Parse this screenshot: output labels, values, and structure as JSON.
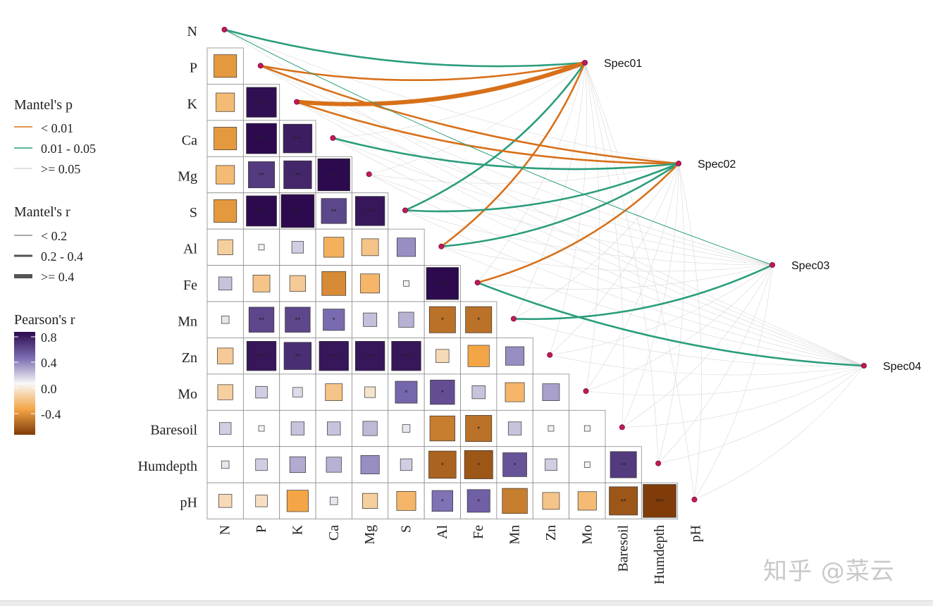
{
  "chart_data": {
    "type": "heatmap",
    "subtype": "mantel-test correlation plot",
    "variables": [
      "N",
      "P",
      "K",
      "Ca",
      "Mg",
      "S",
      "Al",
      "Fe",
      "Mn",
      "Zn",
      "Mo",
      "Baresoil",
      "Humdepth",
      "pH"
    ],
    "species": [
      "Spec01",
      "Spec02",
      "Spec03",
      "Spec04"
    ],
    "pearson_r": [
      {
        "row": "P",
        "col": "N",
        "r": -0.45,
        "sig": ""
      },
      {
        "row": "K",
        "col": "N",
        "r": -0.3,
        "sig": ""
      },
      {
        "row": "K",
        "col": "P",
        "r": 0.78,
        "sig": "***"
      },
      {
        "row": "Ca",
        "col": "N",
        "r": -0.45,
        "sig": ""
      },
      {
        "row": "Ca",
        "col": "P",
        "r": 0.8,
        "sig": "***"
      },
      {
        "row": "Ca",
        "col": "K",
        "r": 0.72,
        "sig": "***"
      },
      {
        "row": "Mg",
        "col": "N",
        "r": -0.3,
        "sig": ""
      },
      {
        "row": "Mg",
        "col": "P",
        "r": 0.6,
        "sig": "**"
      },
      {
        "row": "Mg",
        "col": "K",
        "r": 0.68,
        "sig": "**"
      },
      {
        "row": "Mg",
        "col": "Ca",
        "r": 0.9,
        "sig": "***"
      },
      {
        "row": "S",
        "col": "N",
        "r": -0.45,
        "sig": ""
      },
      {
        "row": "S",
        "col": "P",
        "r": 0.8,
        "sig": "***"
      },
      {
        "row": "S",
        "col": "K",
        "r": 0.95,
        "sig": "***"
      },
      {
        "row": "S",
        "col": "Ca",
        "r": 0.55,
        "sig": "**"
      },
      {
        "row": "S",
        "col": "Mg",
        "r": 0.75,
        "sig": "***"
      },
      {
        "row": "Al",
        "col": "N",
        "r": -0.2,
        "sig": ""
      },
      {
        "row": "Al",
        "col": "P",
        "r": 0.02,
        "sig": ""
      },
      {
        "row": "Al",
        "col": "K",
        "r": 0.12,
        "sig": ""
      },
      {
        "row": "Al",
        "col": "Ca",
        "r": -0.35,
        "sig": ""
      },
      {
        "row": "Al",
        "col": "Mg",
        "r": -0.25,
        "sig": ""
      },
      {
        "row": "Al",
        "col": "S",
        "r": 0.3,
        "sig": ""
      },
      {
        "row": "Fe",
        "col": "N",
        "r": 0.15,
        "sig": ""
      },
      {
        "row": "Fe",
        "col": "P",
        "r": -0.25,
        "sig": ""
      },
      {
        "row": "Fe",
        "col": "K",
        "r": -0.22,
        "sig": ""
      },
      {
        "row": "Fe",
        "col": "Ca",
        "r": -0.5,
        "sig": ""
      },
      {
        "row": "Fe",
        "col": "Mg",
        "r": -0.32,
        "sig": ""
      },
      {
        "row": "Fe",
        "col": "S",
        "r": 0.02,
        "sig": ""
      },
      {
        "row": "Fe",
        "col": "Al",
        "r": 0.9,
        "sig": "***"
      },
      {
        "row": "Mn",
        "col": "N",
        "r": 0.05,
        "sig": ""
      },
      {
        "row": "Mn",
        "col": "P",
        "r": 0.55,
        "sig": "**"
      },
      {
        "row": "Mn",
        "col": "K",
        "r": 0.55,
        "sig": "**"
      },
      {
        "row": "Mn",
        "col": "Ca",
        "r": 0.4,
        "sig": "*"
      },
      {
        "row": "Mn",
        "col": "Mg",
        "r": 0.16,
        "sig": ""
      },
      {
        "row": "Mn",
        "col": "S",
        "r": 0.2,
        "sig": ""
      },
      {
        "row": "Mn",
        "col": "Al",
        "r": -0.6,
        "sig": "*"
      },
      {
        "row": "Mn",
        "col": "Fe",
        "r": -0.6,
        "sig": "*"
      },
      {
        "row": "Zn",
        "col": "N",
        "r": -0.22,
        "sig": ""
      },
      {
        "row": "Zn",
        "col": "P",
        "r": 0.75,
        "sig": "***"
      },
      {
        "row": "Zn",
        "col": "K",
        "r": 0.65,
        "sig": "**"
      },
      {
        "row": "Zn",
        "col": "Ca",
        "r": 0.75,
        "sig": "***"
      },
      {
        "row": "Zn",
        "col": "Mg",
        "r": 0.75,
        "sig": "***"
      },
      {
        "row": "Zn",
        "col": "S",
        "r": 0.75,
        "sig": "***"
      },
      {
        "row": "Zn",
        "col": "Al",
        "r": -0.15,
        "sig": ""
      },
      {
        "row": "Zn",
        "col": "Fe",
        "r": -0.4,
        "sig": ""
      },
      {
        "row": "Zn",
        "col": "Mn",
        "r": 0.3,
        "sig": ""
      },
      {
        "row": "Mo",
        "col": "N",
        "r": -0.2,
        "sig": ""
      },
      {
        "row": "Mo",
        "col": "P",
        "r": 0.12,
        "sig": ""
      },
      {
        "row": "Mo",
        "col": "K",
        "r": 0.08,
        "sig": ""
      },
      {
        "row": "Mo",
        "col": "Ca",
        "r": -0.25,
        "sig": ""
      },
      {
        "row": "Mo",
        "col": "Mg",
        "r": -0.1,
        "sig": ""
      },
      {
        "row": "Mo",
        "col": "S",
        "r": 0.42,
        "sig": "*"
      },
      {
        "row": "Mo",
        "col": "Al",
        "r": 0.52,
        "sig": "*"
      },
      {
        "row": "Mo",
        "col": "Fe",
        "r": 0.15,
        "sig": ""
      },
      {
        "row": "Mo",
        "col": "Mn",
        "r": -0.32,
        "sig": ""
      },
      {
        "row": "Mo",
        "col": "Zn",
        "r": 0.25,
        "sig": ""
      },
      {
        "row": "Baresoil",
        "col": "N",
        "r": 0.12,
        "sig": ""
      },
      {
        "row": "Baresoil",
        "col": "P",
        "r": 0.02,
        "sig": ""
      },
      {
        "row": "Baresoil",
        "col": "K",
        "r": 0.15,
        "sig": ""
      },
      {
        "row": "Baresoil",
        "col": "Ca",
        "r": 0.15,
        "sig": ""
      },
      {
        "row": "Baresoil",
        "col": "Mg",
        "r": 0.18,
        "sig": ""
      },
      {
        "row": "Baresoil",
        "col": "S",
        "r": 0.05,
        "sig": ""
      },
      {
        "row": "Baresoil",
        "col": "Al",
        "r": -0.55,
        "sig": ""
      },
      {
        "row": "Baresoil",
        "col": "Fe",
        "r": -0.6,
        "sig": "*"
      },
      {
        "row": "Baresoil",
        "col": "Mn",
        "r": 0.15,
        "sig": ""
      },
      {
        "row": "Baresoil",
        "col": "Zn",
        "r": 0.02,
        "sig": ""
      },
      {
        "row": "Baresoil",
        "col": "Mo",
        "r": 0.02,
        "sig": ""
      },
      {
        "row": "Humdepth",
        "col": "N",
        "r": 0.05,
        "sig": ""
      },
      {
        "row": "Humdepth",
        "col": "P",
        "r": 0.12,
        "sig": ""
      },
      {
        "row": "Humdepth",
        "col": "K",
        "r": 0.22,
        "sig": ""
      },
      {
        "row": "Humdepth",
        "col": "Ca",
        "r": 0.2,
        "sig": ""
      },
      {
        "row": "Humdepth",
        "col": "Mg",
        "r": 0.3,
        "sig": ""
      },
      {
        "row": "Humdepth",
        "col": "S",
        "r": 0.12,
        "sig": ""
      },
      {
        "row": "Humdepth",
        "col": "Al",
        "r": -0.65,
        "sig": "*"
      },
      {
        "row": "Humdepth",
        "col": "Fe",
        "r": -0.7,
        "sig": "*"
      },
      {
        "row": "Humdepth",
        "col": "Mn",
        "r": 0.5,
        "sig": "*"
      },
      {
        "row": "Humdepth",
        "col": "Zn",
        "r": 0.12,
        "sig": ""
      },
      {
        "row": "Humdepth",
        "col": "Mo",
        "r": 0.02,
        "sig": ""
      },
      {
        "row": "Humdepth",
        "col": "Baresoil",
        "r": 0.6,
        "sig": "**"
      },
      {
        "row": "pH",
        "col": "N",
        "r": -0.15,
        "sig": ""
      },
      {
        "row": "pH",
        "col": "P",
        "r": -0.12,
        "sig": ""
      },
      {
        "row": "pH",
        "col": "K",
        "r": -0.4,
        "sig": ""
      },
      {
        "row": "pH",
        "col": "Ca",
        "r": 0.05,
        "sig": ""
      },
      {
        "row": "pH",
        "col": "Mg",
        "r": -0.2,
        "sig": ""
      },
      {
        "row": "pH",
        "col": "S",
        "r": -0.32,
        "sig": ""
      },
      {
        "row": "pH",
        "col": "Al",
        "r": 0.38,
        "sig": "*"
      },
      {
        "row": "pH",
        "col": "Fe",
        "r": 0.45,
        "sig": "*"
      },
      {
        "row": "pH",
        "col": "Mn",
        "r": -0.55,
        "sig": ""
      },
      {
        "row": "pH",
        "col": "Zn",
        "r": -0.25,
        "sig": ""
      },
      {
        "row": "pH",
        "col": "Mo",
        "r": -0.3,
        "sig": ""
      },
      {
        "row": "pH",
        "col": "Baresoil",
        "r": -0.7,
        "sig": "**"
      },
      {
        "row": "pH",
        "col": "Humdepth",
        "r": -0.95,
        "sig": "***"
      }
    ],
    "mantel_links": [
      {
        "spec": "Spec01",
        "var": "N",
        "p_class": "0.01 - 0.05",
        "r_class": "0.2 - 0.4"
      },
      {
        "spec": "Spec01",
        "var": "P",
        "p_class": "< 0.01",
        "r_class": "0.2 - 0.4"
      },
      {
        "spec": "Spec01",
        "var": "K",
        "p_class": "< 0.01",
        "r_class": ">= 0.4"
      },
      {
        "spec": "Spec01",
        "var": "S",
        "p_class": "0.01 - 0.05",
        "r_class": "0.2 - 0.4"
      },
      {
        "spec": "Spec01",
        "var": "Al",
        "p_class": "< 0.01",
        "r_class": "0.2 - 0.4"
      },
      {
        "spec": "Spec02",
        "var": "P",
        "p_class": "< 0.01",
        "r_class": "0.2 - 0.4"
      },
      {
        "spec": "Spec02",
        "var": "K",
        "p_class": "< 0.01",
        "r_class": "0.2 - 0.4"
      },
      {
        "spec": "Spec02",
        "var": "Ca",
        "p_class": "0.01 - 0.05",
        "r_class": "0.2 - 0.4"
      },
      {
        "spec": "Spec02",
        "var": "S",
        "p_class": "0.01 - 0.05",
        "r_class": "0.2 - 0.4"
      },
      {
        "spec": "Spec02",
        "var": "Al",
        "p_class": "0.01 - 0.05",
        "r_class": "0.2 - 0.4"
      },
      {
        "spec": "Spec02",
        "var": "Fe",
        "p_class": "< 0.01",
        "r_class": "0.2 - 0.4"
      },
      {
        "spec": "Spec03",
        "var": "N",
        "p_class": "0.01 - 0.05",
        "r_class": "< 0.2"
      },
      {
        "spec": "Spec03",
        "var": "Mn",
        "p_class": "0.01 - 0.05",
        "r_class": "0.2 - 0.4"
      },
      {
        "spec": "Spec04",
        "var": "Fe",
        "p_class": "0.01 - 0.05",
        "r_class": "0.2 - 0.4"
      }
    ],
    "colors": {
      "p_lt_001": "#d8701a",
      "p_001_005": "#2a9d7c",
      "p_ge_005": "#d7d7d7",
      "node": "#c2185b",
      "grid": "#8a8a8a"
    },
    "legend": {
      "p_title": "Mantel's p",
      "p_labels": [
        "< 0.01",
        "0.01 - 0.05",
        ">= 0.05"
      ],
      "r_title": "Mantel's r",
      "r_labels": [
        "< 0.2",
        "0.2 - 0.4",
        ">= 0.4"
      ],
      "pearson_title": "Pearson's r",
      "pearson_ticks": [
        "0.8",
        "0.4",
        "0.0",
        "-0.4"
      ],
      "pearson_range": [
        -0.8,
        0.8
      ]
    }
  },
  "watermark": "知乎 @菜云"
}
